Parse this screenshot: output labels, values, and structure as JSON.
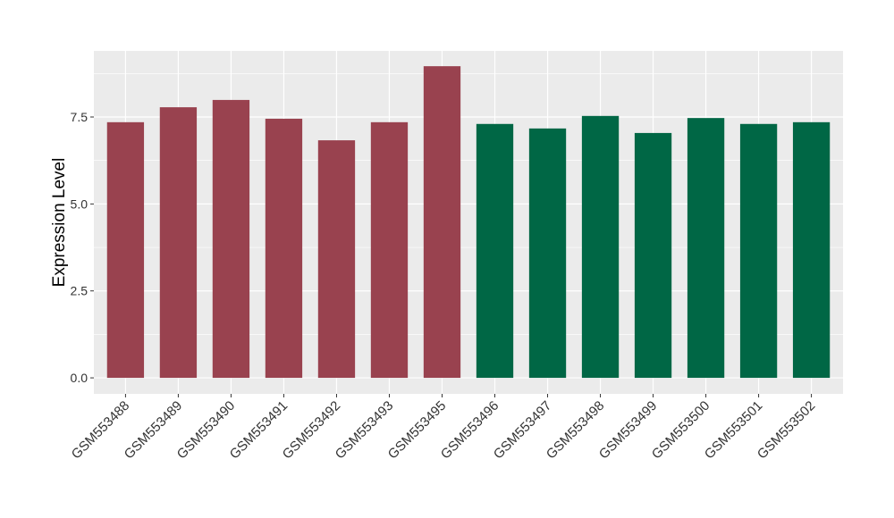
{
  "chart_data": {
    "type": "bar",
    "y_label": "Expression Level",
    "categories": [
      "GSM553488",
      "GSM553489",
      "GSM553490",
      "GSM553491",
      "GSM553492",
      "GSM553493",
      "GSM553495",
      "GSM553496",
      "GSM553497",
      "GSM553498",
      "GSM553499",
      "GSM553500",
      "GSM553501",
      "GSM553502"
    ],
    "values": [
      7.35,
      7.78,
      7.99,
      7.45,
      6.83,
      7.35,
      8.96,
      7.3,
      7.17,
      7.53,
      7.04,
      7.47,
      7.3,
      7.35
    ],
    "colors": [
      "#99424f",
      "#99424f",
      "#99424f",
      "#99424f",
      "#99424f",
      "#99424f",
      "#99424f",
      "#006745",
      "#006745",
      "#006745",
      "#006745",
      "#006745",
      "#006745",
      "#006745"
    ],
    "ylim": [
      -0.46,
      9.4
    ],
    "yticks": [
      {
        "value": 0,
        "label": "0.0"
      },
      {
        "value": 2.5,
        "label": "2.5"
      },
      {
        "value": 5,
        "label": "5.0"
      },
      {
        "value": 7.5,
        "label": "7.5"
      }
    ],
    "grid": true,
    "minor_grid": true
  }
}
